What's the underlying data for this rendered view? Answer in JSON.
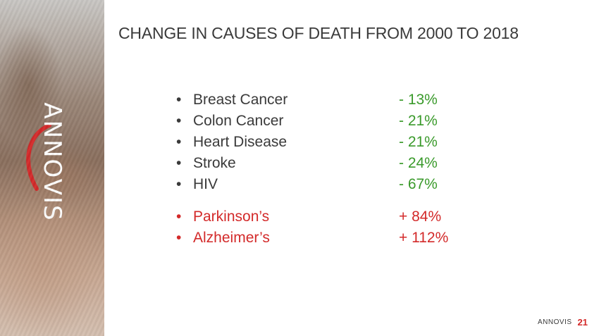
{
  "slide": {
    "title": "CHANGE IN CAUSES OF DEATH FROM 2000 TO 2018",
    "logo_text": "ANNOVIS",
    "page_number": "21"
  },
  "decreases": [
    {
      "cause": "Breast Cancer",
      "change": "- 13%"
    },
    {
      "cause": "Colon Cancer",
      "change": "- 21%"
    },
    {
      "cause": "Heart Disease",
      "change": "- 21%"
    },
    {
      "cause": "Stroke",
      "change": "- 24%"
    },
    {
      "cause": "HIV",
      "change": "- 67%"
    }
  ],
  "increases": [
    {
      "cause": "Parkinson’s",
      "change": "+ 84%"
    },
    {
      "cause": "Alzheimer’s",
      "change": "+ 112%"
    }
  ],
  "bullet": "•",
  "colors": {
    "decrease": "#3a9a2b",
    "increase": "#d32a2a",
    "text": "#3a3a3a",
    "brand_accent": "#d32a2a"
  }
}
